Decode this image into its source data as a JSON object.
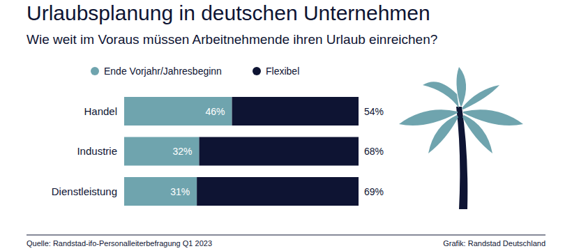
{
  "chart_data": {
    "type": "bar",
    "orientation": "horizontal",
    "stacked": true,
    "title": "Urlaubsplanung in deutschen Unternehmen",
    "subtitle": "Wie weit im Voraus müssen Arbeitnehmende ihren Urlaub einreichen?",
    "categories": [
      "Handel",
      "Industrie",
      "Dienstleistung"
    ],
    "series": [
      {
        "name": "Ende Vorjahr/Jahresbeginn",
        "color": "#6fa4ae",
        "values": [
          46,
          32,
          31
        ],
        "value_labels": [
          "46%",
          "32%",
          "31%"
        ]
      },
      {
        "name": "Flexibel",
        "color": "#0e1433",
        "values": [
          54,
          68,
          69
        ],
        "value_labels": [
          "54%",
          "68%",
          "69%"
        ]
      }
    ],
    "xlim": [
      0,
      100
    ],
    "data_labels": true,
    "tick_labels": "y",
    "grid": false,
    "legend": "top",
    "annotations": [
      "Quelle: Randstad-ifo-Personalleiterbefragung Q1 2023",
      "Grafik: Randstad Deutschland"
    ]
  }
}
